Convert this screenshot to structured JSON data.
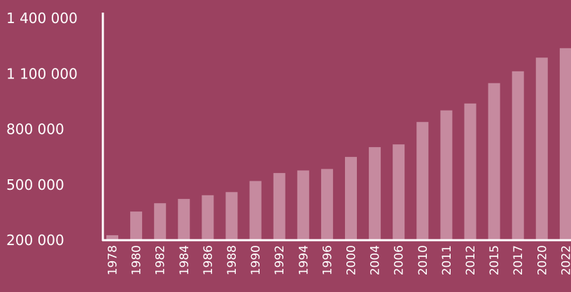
{
  "colors": {
    "background": "#9b4160",
    "bar": "#c68a9f",
    "axis": "#ffffff",
    "text": "#ffffff"
  },
  "chart_data": {
    "type": "bar",
    "title": "",
    "xlabel": "",
    "ylabel": "",
    "grid": false,
    "categories": [
      "1978",
      "1980",
      "1982",
      "1984",
      "1986",
      "1988",
      "1990",
      "1992",
      "1994",
      "1996",
      "2000",
      "2004",
      "2006",
      "2010",
      "2011",
      "2012",
      "2015",
      "2017",
      "2020",
      "2022"
    ],
    "values": [
      227000,
      355000,
      400000,
      423000,
      443000,
      460000,
      520000,
      563000,
      577000,
      585000,
      650000,
      703000,
      718000,
      839000,
      902000,
      939000,
      1049000,
      1113000,
      1187000,
      1238000
    ],
    "yticks": [
      "1 400 000",
      "1 100 000",
      "800 000",
      "500 000",
      "200 000"
    ],
    "ytick_values": [
      1400000,
      1100000,
      800000,
      500000,
      200000
    ],
    "ylim": [
      200000,
      1400000
    ]
  }
}
